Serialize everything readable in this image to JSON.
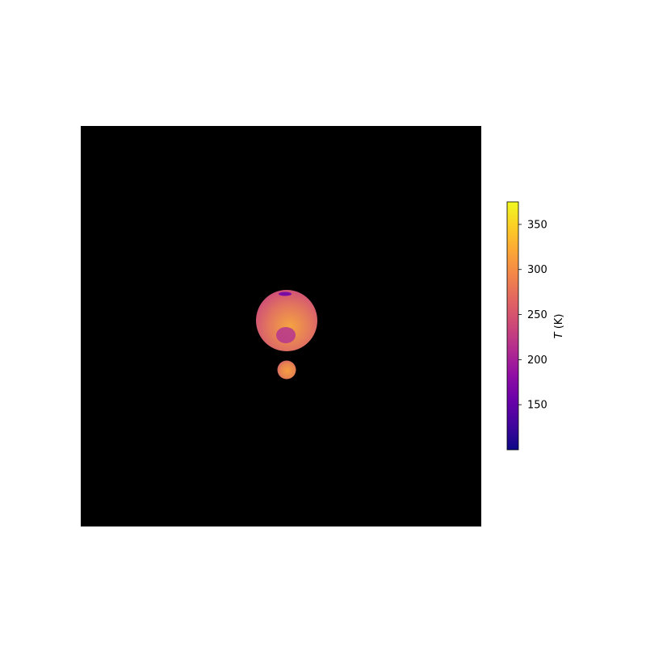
{
  "chart_data": {
    "type": "heatmap",
    "title": "",
    "background_color": "#000000",
    "colormap": "plasma",
    "bodies": [
      {
        "name": "",
        "shape": "sphere",
        "limb_color": "#cc4a7c",
        "mid_color": "#e2755e",
        "center_color": "#f5a441",
        "features": [
          {
            "kind": "cold-spot",
            "color": "#b5358e"
          },
          {
            "kind": "polar-cap",
            "color": "#7a0ca6"
          }
        ]
      },
      {
        "name": "",
        "shape": "sphere",
        "limb_color": "#d05b72",
        "mid_color": "#e7834f",
        "center_color": "#f49f42",
        "features": []
      }
    ],
    "colorbar": {
      "label": "T (K)",
      "label_italic": "T",
      "label_unit": "(K)",
      "range": [
        100,
        375
      ],
      "ticks": [
        150,
        200,
        250,
        300,
        350
      ],
      "tick_labels": [
        "150",
        "200",
        "250",
        "300",
        "350"
      ]
    }
  }
}
